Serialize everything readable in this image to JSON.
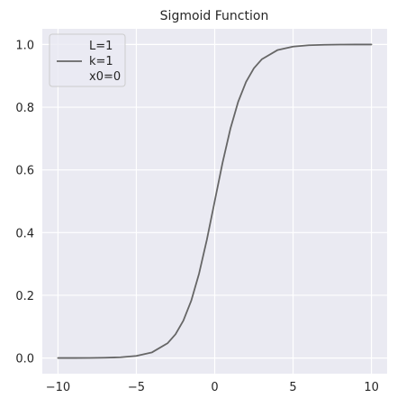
{
  "chart_data": {
    "type": "line",
    "title": "Sigmoid Function",
    "xlabel": "",
    "ylabel": "",
    "xlim": [
      -11,
      11
    ],
    "ylim": [
      -0.05,
      1.05
    ],
    "grid": true,
    "legend_position": "top-left",
    "xticks": [
      -10,
      -5,
      0,
      5,
      10
    ],
    "xtick_labels": [
      "−10",
      "−5",
      "0",
      "5",
      "10"
    ],
    "yticks": [
      0.0,
      0.2,
      0.4,
      0.6,
      0.8,
      1.0
    ],
    "ytick_labels": [
      "0.0",
      "0.2",
      "0.4",
      "0.6",
      "0.8",
      "1.0"
    ],
    "legend_lines": [
      "L=1",
      "k=1",
      "x0=0"
    ],
    "series": [
      {
        "color": "#666666",
        "x": [
          -10,
          -9,
          -8,
          -7,
          -6,
          -5,
          -4,
          -3,
          -2.5,
          -2,
          -1.5,
          -1,
          -0.5,
          0,
          0.5,
          1,
          1.5,
          2,
          2.5,
          3,
          4,
          5,
          6,
          7,
          8,
          9,
          10
        ],
        "y": [
          4.54e-05,
          0.000123,
          0.000335,
          0.000911,
          0.00247,
          0.00669,
          0.018,
          0.0474,
          0.0759,
          0.1192,
          0.1824,
          0.2689,
          0.3775,
          0.5,
          0.6225,
          0.7311,
          0.8176,
          0.8808,
          0.9241,
          0.9526,
          0.982,
          0.9933,
          0.9975,
          0.9991,
          0.99966,
          0.99988,
          0.99995
        ]
      }
    ]
  },
  "colors": {
    "plot_background": "#eaeaf2",
    "grid": "#ffffff",
    "line": "#666666"
  }
}
